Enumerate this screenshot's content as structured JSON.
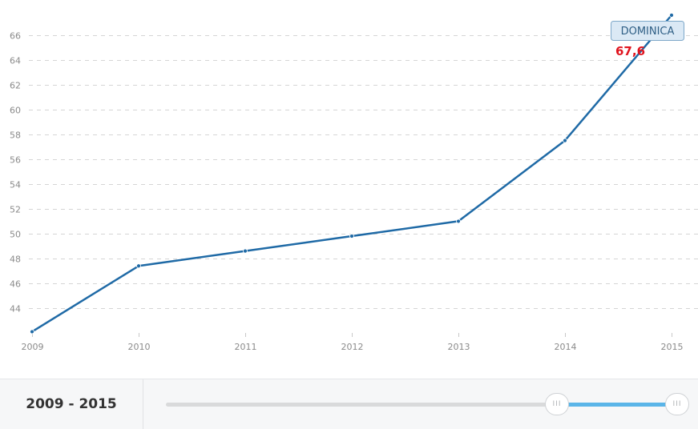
{
  "chart_data": {
    "type": "line",
    "title": "",
    "xlabel": "",
    "ylabel": "",
    "x": [
      2009,
      2010,
      2011,
      2012,
      2013,
      2014,
      2015
    ],
    "series": [
      {
        "name": "DOMINICA",
        "values": [
          42.1,
          47.4,
          48.6,
          49.8,
          51.0,
          57.5,
          67.6
        ]
      }
    ],
    "xlim": [
      2009,
      2015
    ],
    "ylim": [
      42,
      67.6
    ],
    "yticks": [
      44,
      46,
      48,
      50,
      52,
      54,
      56,
      58,
      60,
      62,
      64,
      66
    ],
    "grid": true,
    "line_color": "#1f6aa6",
    "tooltip": {
      "label": "DOMINICA",
      "value": "67,6"
    }
  },
  "footer": {
    "range_label": "2009 - 2015",
    "handle_glyph": "III",
    "range_start": 2009,
    "range_end": 2015,
    "selected_start_fraction": 0.765,
    "selected_end_fraction": 1.0
  },
  "colors": {
    "gridline": "#d5d5d5",
    "tick_text": "#8a8a8a",
    "tooltip_bg": "#dbe9f5",
    "tooltip_border": "#7ea8c9",
    "tooltip_text": "#2f5f85",
    "value_text": "#e0141e",
    "slider_fill": "#5bb5e8"
  }
}
